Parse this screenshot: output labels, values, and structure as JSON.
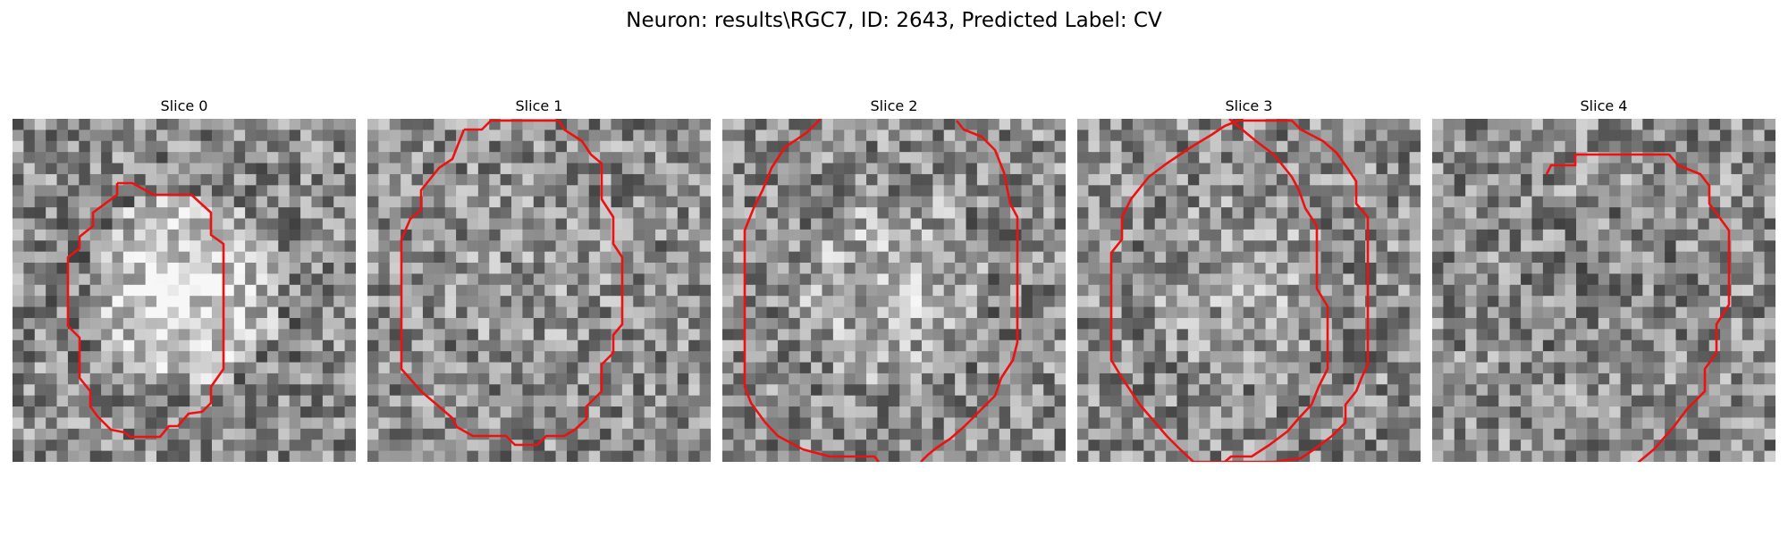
{
  "figure": {
    "title": "Neuron: results\\RGC7, ID: 2643, Predicted Label: CV"
  },
  "panels": [
    {
      "title": "Slice 0",
      "seed": 11,
      "center_bright": 0.35
    },
    {
      "title": "Slice 1",
      "seed": 23,
      "center_bright": 0.05
    },
    {
      "title": "Slice 2",
      "seed": 37,
      "center_bright": 0.18
    },
    {
      "title": "Slice 3",
      "seed": 51,
      "center_bright": 0.1
    },
    {
      "title": "Slice 4",
      "seed": 67,
      "center_bright": -0.05
    }
  ],
  "colors": {
    "contour": "#ee1111",
    "background": "#ffffff"
  }
}
